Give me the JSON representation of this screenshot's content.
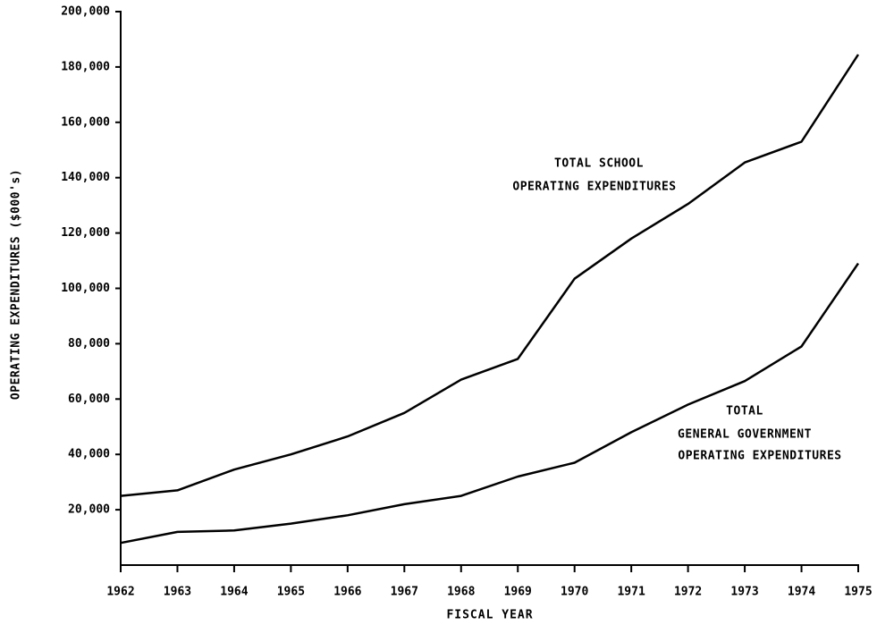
{
  "chart_data": {
    "type": "line",
    "x_label": "FISCAL YEAR",
    "y_label": "OPERATING EXPENDITURES ($000's)",
    "x": [
      1962,
      1963,
      1964,
      1965,
      1966,
      1967,
      1968,
      1969,
      1970,
      1971,
      1972,
      1973,
      1974,
      1975
    ],
    "xlim": [
      1962,
      1975
    ],
    "xticks": [
      1962,
      1963,
      1964,
      1965,
      1966,
      1967,
      1968,
      1969,
      1970,
      1971,
      1972,
      1973,
      1974,
      1975
    ],
    "ylim": [
      0,
      200000
    ],
    "yticks": [
      {
        "value": 20000,
        "label": "20,000"
      },
      {
        "value": 40000,
        "label": "40,000"
      },
      {
        "value": 60000,
        "label": "60,000"
      },
      {
        "value": 80000,
        "label": "80,000"
      },
      {
        "value": 100000,
        "label": "100,000"
      },
      {
        "value": 120000,
        "label": "120,000"
      },
      {
        "value": 140000,
        "label": "140,000"
      },
      {
        "value": 160000,
        "label": "160,000"
      },
      {
        "value": 180000,
        "label": "180,000"
      },
      {
        "value": 200000,
        "label": "200,000"
      }
    ],
    "grid": false,
    "series": [
      {
        "label": [
          "TOTAL SCHOOL",
          "OPERATING EXPENDITURES"
        ],
        "color": "#000000",
        "values": [
          25000,
          27000,
          34500,
          40000,
          46500,
          55000,
          67000,
          74500,
          103500,
          118000,
          130500,
          145500,
          153000,
          184500
        ]
      },
      {
        "label": [
          "TOTAL",
          "GENERAL GOVERNMENT",
          "OPERATING EXPENDITURES"
        ],
        "color": "#000000",
        "values": [
          8000,
          12000,
          12500,
          15000,
          18000,
          22000,
          25000,
          32000,
          37000,
          48000,
          58000,
          66500,
          79000,
          109000
        ]
      }
    ]
  }
}
